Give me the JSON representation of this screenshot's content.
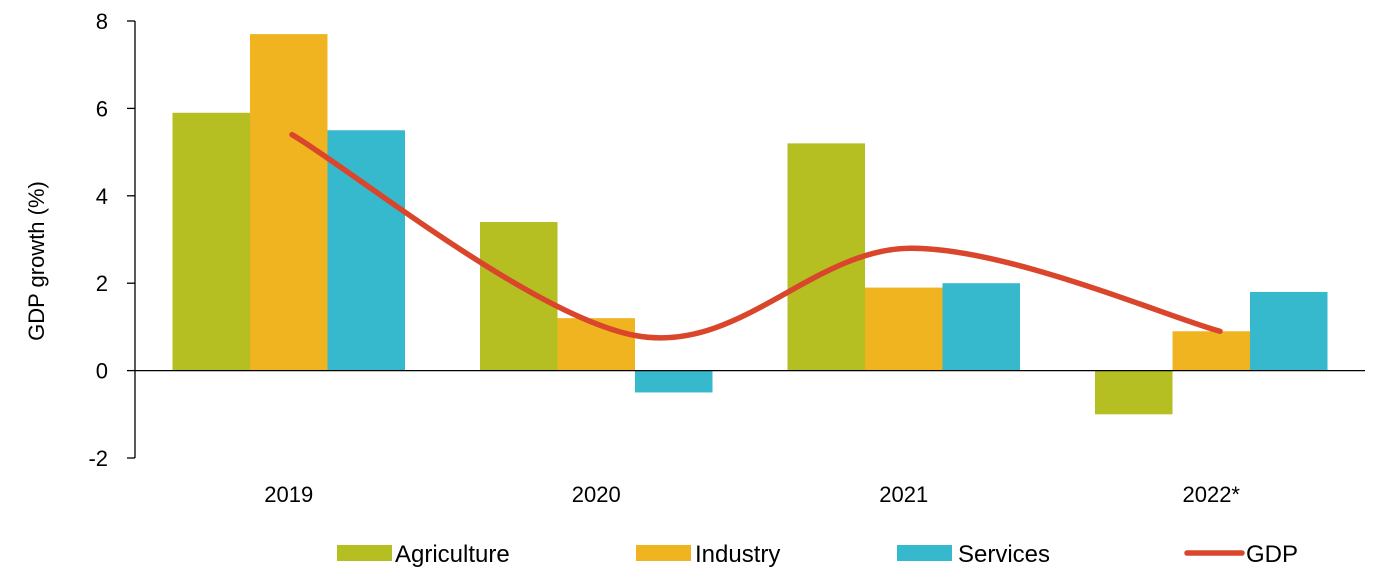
{
  "chart_data": {
    "type": "bar",
    "categories": [
      "2019",
      "2020",
      "2021",
      "2022*"
    ],
    "series": [
      {
        "name": "Agriculture",
        "kind": "bar",
        "color": "#B5BF22",
        "values": [
          5.9,
          3.4,
          5.2,
          -1.0
        ]
      },
      {
        "name": "Industry",
        "kind": "bar",
        "color": "#F0B421",
        "values": [
          7.7,
          1.2,
          1.9,
          0.9
        ]
      },
      {
        "name": "Services",
        "kind": "bar",
        "color": "#36B8CD",
        "values": [
          5.5,
          -0.5,
          2.0,
          1.8
        ]
      },
      {
        "name": "GDP",
        "kind": "line",
        "smooth": true,
        "color": "#D9462B",
        "values": [
          5.4,
          0.8,
          2.8,
          0.9
        ]
      }
    ],
    "title": "",
    "xlabel": "",
    "ylabel": "GDP growth (%)",
    "ylim": [
      -2,
      8
    ],
    "yticks": [
      -2,
      0,
      2,
      4,
      6,
      8
    ],
    "grid": false,
    "legend": "bottom"
  }
}
